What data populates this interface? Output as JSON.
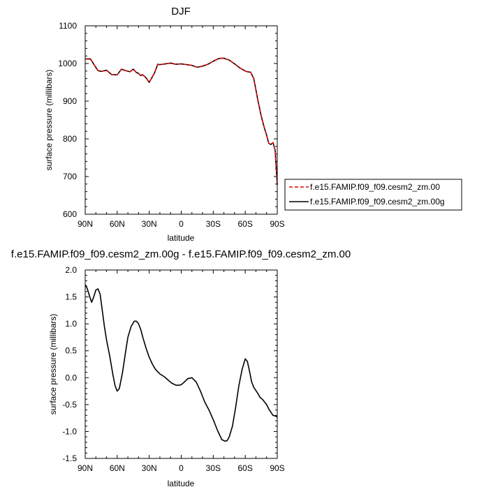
{
  "chart_data": [
    {
      "type": "line",
      "title": "DJF",
      "xlabel": "latitude",
      "ylabel": "surface pressure (millibars)",
      "xlim": [
        90,
        -90
      ],
      "ylim": [
        600,
        1100
      ],
      "x_ticks": [
        {
          "value": 90,
          "label": "90N"
        },
        {
          "value": 60,
          "label": "60N"
        },
        {
          "value": 30,
          "label": "30N"
        },
        {
          "value": 0,
          "label": "0"
        },
        {
          "value": -30,
          "label": "30S"
        },
        {
          "value": -60,
          "label": "60S"
        },
        {
          "value": -90,
          "label": "90S"
        }
      ],
      "y_ticks": [
        {
          "value": 600,
          "label": "600"
        },
        {
          "value": 700,
          "label": "700"
        },
        {
          "value": 800,
          "label": "800"
        },
        {
          "value": 900,
          "label": "900"
        },
        {
          "value": 1000,
          "label": "1000"
        },
        {
          "value": 1100,
          "label": "1100"
        }
      ],
      "legend_position": "right",
      "x": [
        90,
        85,
        82,
        78,
        75,
        70,
        65,
        60,
        56,
        52,
        48,
        45,
        42,
        40,
        38,
        36,
        33,
        30,
        28,
        25,
        22,
        20,
        15,
        10,
        5,
        0,
        -5,
        -10,
        -15,
        -20,
        -25,
        -30,
        -35,
        -38,
        -40,
        -45,
        -50,
        -55,
        -60,
        -62,
        -65,
        -68,
        -70,
        -72,
        -75,
        -78,
        -80,
        -82,
        -84,
        -86,
        -88,
        -90
      ],
      "series": [
        {
          "name": "f.e15.FAMIP.f09_f09.cesm2_zm.00",
          "color": "#dd0000",
          "dash": true,
          "values": [
            1012,
            1012,
            998,
            981,
            979,
            982,
            970,
            970,
            985,
            981,
            978,
            985,
            976,
            974,
            968,
            970,
            962,
            950,
            960,
            975,
            998,
            997,
            999,
            1001,
            998,
            999,
            997,
            995,
            990,
            993,
            998,
            1006,
            1013,
            1014,
            1014,
            1009,
            999,
            988,
            980,
            978,
            977,
            960,
            930,
            900,
            860,
            828,
            810,
            788,
            785,
            790,
            770,
            678
          ]
        },
        {
          "name": "f.e15.FAMIP.f09_f09.cesm2_zm.00g",
          "color": "#000000",
          "dash": false,
          "values": [
            1012,
            1012,
            998,
            981,
            979,
            982,
            970,
            970,
            985,
            981,
            978,
            985,
            976,
            974,
            968,
            970,
            962,
            950,
            960,
            975,
            998,
            997,
            999,
            1001,
            998,
            999,
            997,
            995,
            990,
            993,
            998,
            1006,
            1013,
            1014,
            1014,
            1009,
            999,
            988,
            980,
            978,
            977,
            960,
            930,
            900,
            860,
            828,
            810,
            788,
            785,
            790,
            770,
            678
          ]
        }
      ]
    },
    {
      "type": "line",
      "title": "f.e15.FAMIP.f09_f09.cesm2_zm.00g - f.e15.FAMIP.f09_f09.cesm2_zm.00",
      "xlabel": "latitude",
      "ylabel": "surface pressure (millibars)",
      "xlim": [
        90,
        -90
      ],
      "ylim": [
        -1.5,
        2.0
      ],
      "x_ticks": [
        {
          "value": 90,
          "label": "90N"
        },
        {
          "value": 60,
          "label": "60N"
        },
        {
          "value": 30,
          "label": "30N"
        },
        {
          "value": 0,
          "label": "0"
        },
        {
          "value": -30,
          "label": "30S"
        },
        {
          "value": -60,
          "label": "60S"
        },
        {
          "value": -90,
          "label": "90S"
        }
      ],
      "y_ticks": [
        {
          "value": -1.5,
          "label": "-1.5"
        },
        {
          "value": -1.0,
          "label": "-1.0"
        },
        {
          "value": -0.5,
          "label": "-0.5"
        },
        {
          "value": 0.0,
          "label": "0.0"
        },
        {
          "value": 0.5,
          "label": "0.5"
        },
        {
          "value": 1.0,
          "label": "1.0"
        },
        {
          "value": 1.5,
          "label": "1.5"
        },
        {
          "value": 2.0,
          "label": "2.0"
        }
      ],
      "x": [
        90,
        88,
        86,
        84,
        82,
        80,
        78,
        76,
        74,
        72,
        70,
        67,
        64,
        62,
        60,
        58,
        55,
        52,
        50,
        47,
        44,
        42,
        40,
        38,
        36,
        33,
        30,
        27,
        24,
        20,
        16,
        12,
        9,
        5,
        2,
        0,
        -3,
        -6,
        -10,
        -14,
        -18,
        -22,
        -26,
        -30,
        -34,
        -38,
        -41,
        -43,
        -45,
        -48,
        -51,
        -54,
        -57,
        -60,
        -62,
        -64,
        -66,
        -68,
        -70,
        -72,
        -74,
        -76,
        -78,
        -80,
        -82,
        -84,
        -86,
        -88,
        -90
      ],
      "series": [
        {
          "name": "",
          "color": "#000000",
          "dash": false,
          "values": [
            1.73,
            1.65,
            1.52,
            1.4,
            1.5,
            1.63,
            1.65,
            1.55,
            1.25,
            0.95,
            0.7,
            0.4,
            0.05,
            -0.15,
            -0.25,
            -0.2,
            0.1,
            0.5,
            0.75,
            0.95,
            1.05,
            1.05,
            1.0,
            0.9,
            0.75,
            0.55,
            0.38,
            0.25,
            0.15,
            0.07,
            0.02,
            -0.05,
            -0.1,
            -0.14,
            -0.14,
            -0.13,
            -0.08,
            -0.02,
            0.0,
            -0.08,
            -0.25,
            -0.45,
            -0.6,
            -0.78,
            -0.98,
            -1.15,
            -1.18,
            -1.17,
            -1.1,
            -0.9,
            -0.55,
            -0.15,
            0.15,
            0.35,
            0.3,
            0.12,
            -0.08,
            -0.18,
            -0.24,
            -0.3,
            -0.37,
            -0.4,
            -0.45,
            -0.5,
            -0.58,
            -0.64,
            -0.7,
            -0.71,
            -0.73
          ]
        }
      ]
    }
  ]
}
